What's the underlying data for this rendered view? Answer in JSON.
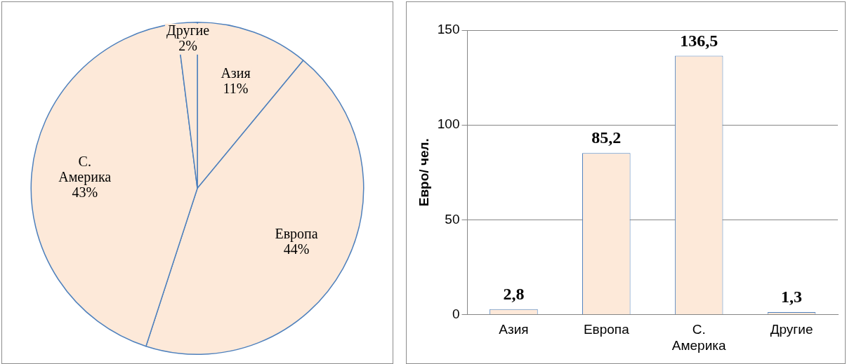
{
  "chart_data": [
    {
      "type": "pie",
      "categories": [
        "Азия",
        "Европа",
        "С. Америка",
        "Другие"
      ],
      "values": [
        11,
        44,
        43,
        2
      ],
      "colors": [
        "#fde9d9",
        "#fde9d9",
        "#fde9d9",
        "#fde9d9"
      ],
      "value_labels": [
        "11%",
        "44%",
        "43%",
        "2%"
      ],
      "legend": false
    },
    {
      "type": "bar",
      "categories": [
        "Азия",
        "Европа",
        "С. Америка",
        "Другие"
      ],
      "values": [
        2.8,
        85.2,
        136.5,
        1.3
      ],
      "color": "#fde9d9",
      "value_labels": [
        "2,8",
        "85,2",
        "136,5",
        "1,3"
      ],
      "ylabel": "Евро/ чел.",
      "ylim": [
        0,
        150
      ],
      "yticks": [
        0,
        50,
        100,
        150
      ],
      "grid": "y",
      "legend": false
    }
  ]
}
